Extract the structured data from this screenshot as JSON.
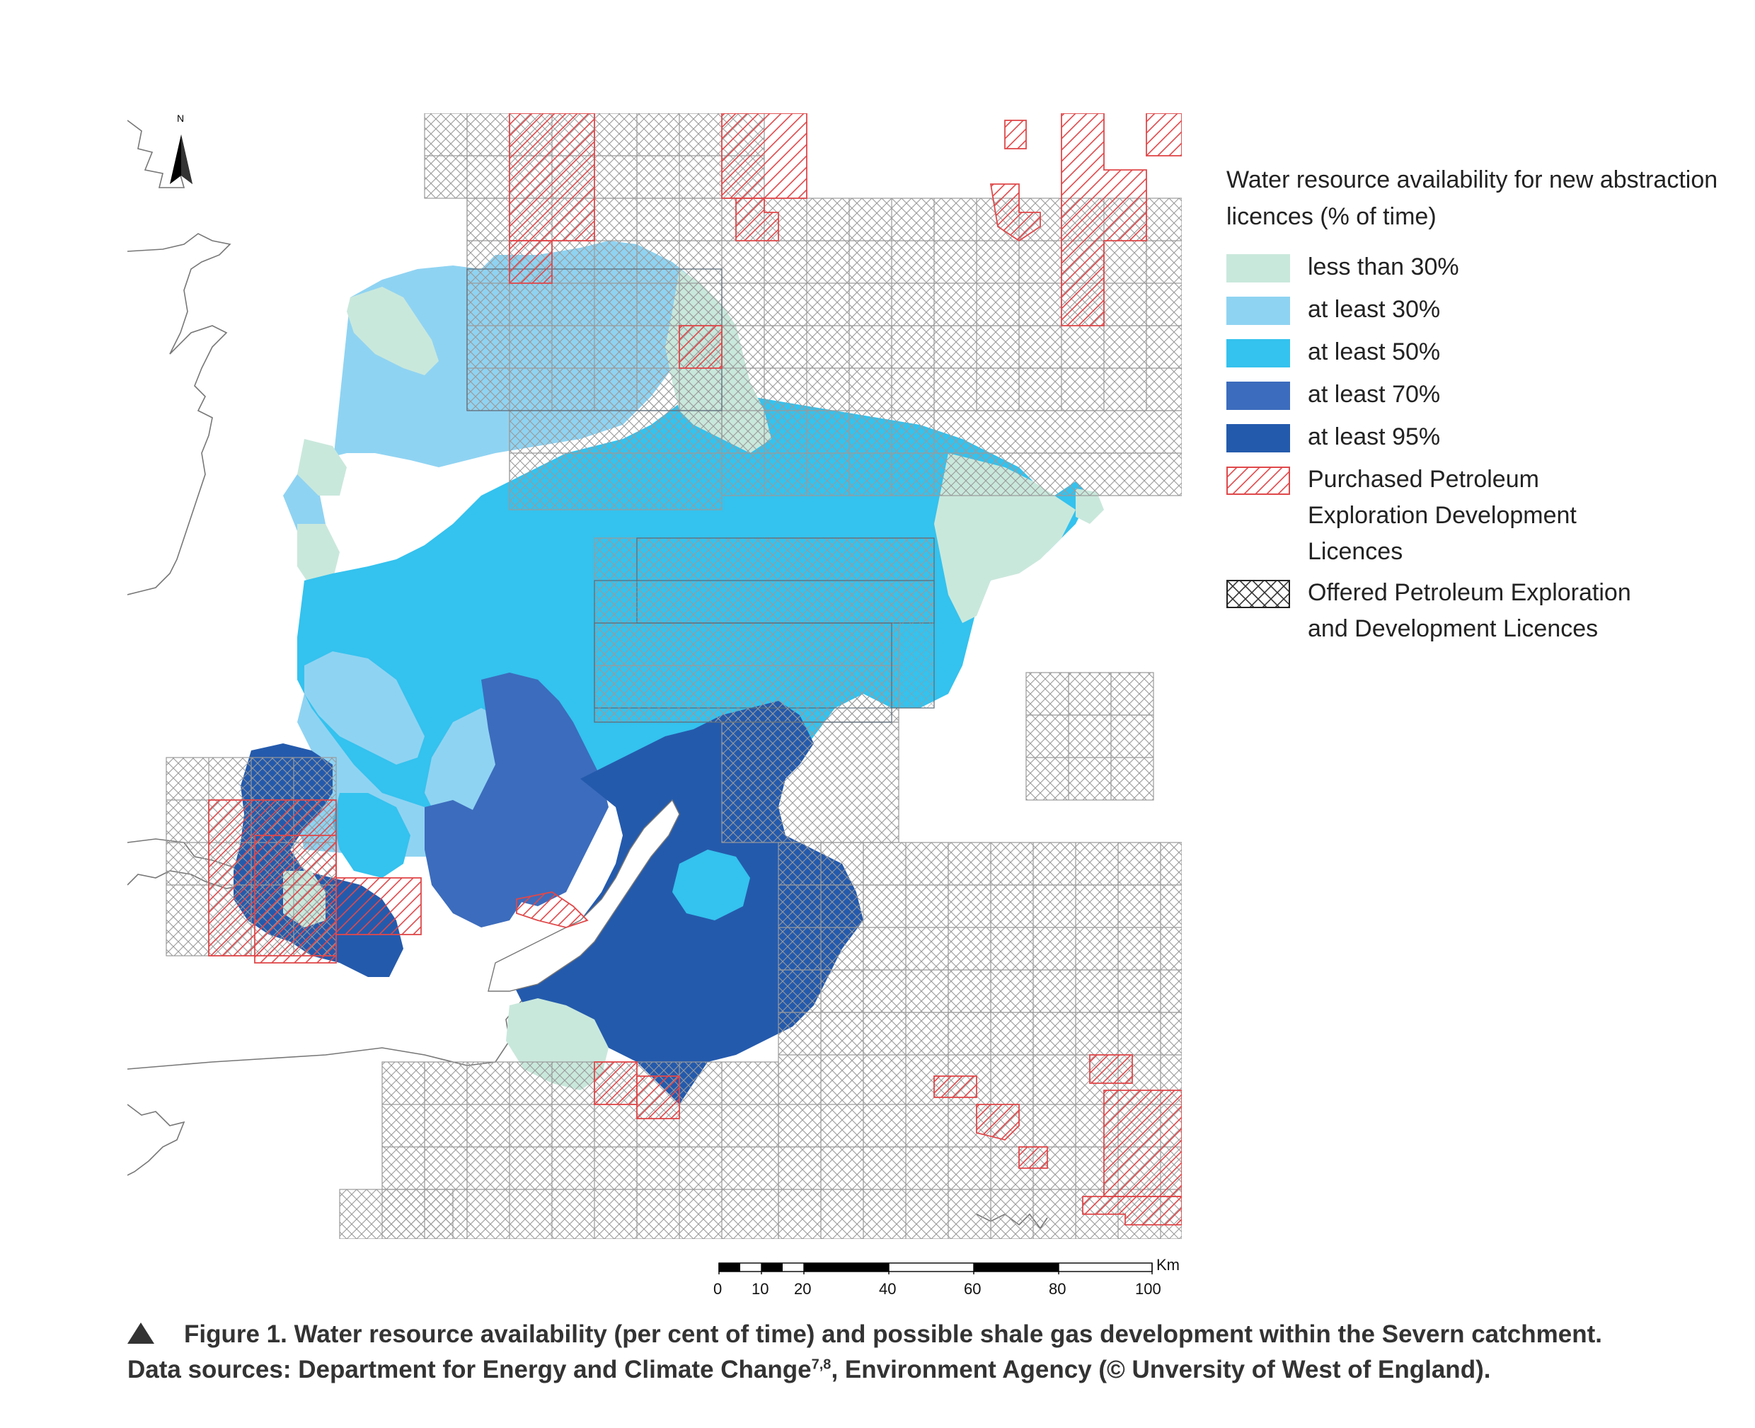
{
  "legend": {
    "title": "Water resource availability for new abstraction licences (% of time)",
    "items": [
      {
        "label": "less than 30%",
        "color": "#c9e8dc"
      },
      {
        "label": "at least 30%",
        "color": "#8fd3f2"
      },
      {
        "label": "at least 50%",
        "color": "#34c2ee"
      },
      {
        "label": "at least 70%",
        "color": "#3c6cbd"
      },
      {
        "label": "at least 95%",
        "color": "#245aac"
      }
    ],
    "purchased": {
      "label": "Purchased Petroleum Exploration Development Licences",
      "color": "#e0484a"
    },
    "offered": {
      "label": "Offered Petroleum Exploration and Development Licences",
      "color": "#555555"
    }
  },
  "north_arrow": {
    "icon": "north-arrow-icon",
    "label": "N"
  },
  "scale_bar": {
    "unit": "Km",
    "ticks": [
      "0",
      "10",
      "20",
      "40",
      "60",
      "80",
      "100"
    ]
  },
  "caption": {
    "line1": "Figure 1. Water resource availability (per cent of time) and possible shale gas development within the Severn catchment.",
    "line2_a": "Data sources: Department for Energy and Climate Change",
    "line2_sup": "7,8",
    "line2_b": ", Environment Agency (© Unversity of West of England)."
  }
}
